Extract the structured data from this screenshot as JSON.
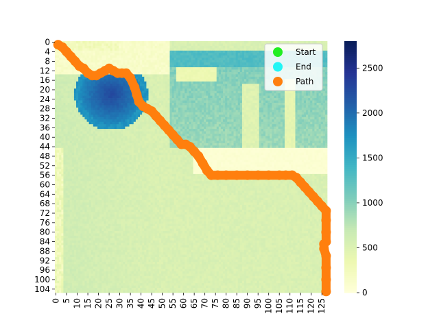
{
  "chart_data": {
    "type": "heatmap",
    "title": "",
    "xlabel": "",
    "ylabel": "",
    "x_tick_labels": [
      "0",
      "5",
      "10",
      "15",
      "20",
      "25",
      "30",
      "35",
      "40",
      "45",
      "50",
      "55",
      "60",
      "65",
      "70",
      "75",
      "80",
      "85",
      "90",
      "95",
      "100",
      "105",
      "110",
      "115",
      "120",
      "125"
    ],
    "y_tick_labels": [
      "0",
      "4",
      "8",
      "12",
      "16",
      "20",
      "24",
      "28",
      "32",
      "36",
      "40",
      "44",
      "48",
      "52",
      "56",
      "60",
      "64",
      "68",
      "72",
      "76",
      "80",
      "84",
      "88",
      "92",
      "96",
      "100",
      "104"
    ],
    "grid_cols": 128,
    "grid_rows": 106,
    "colorbar": {
      "min": 0,
      "max": 2800,
      "ticks": [
        0,
        500,
        1000,
        1500,
        2000,
        2500
      ],
      "colormap": "YlGnBu"
    },
    "legend": {
      "placement": "top-right",
      "entries": [
        {
          "label": "Start",
          "color": "#22ee22"
        },
        {
          "label": "End",
          "color": "#22f5f5"
        },
        {
          "label": "Path",
          "color": "#ff7f0e"
        }
      ]
    },
    "path": {
      "color": "#ff7f0e",
      "points": [
        [
          1,
          1
        ],
        [
          3,
          2
        ],
        [
          5,
          4
        ],
        [
          7,
          6
        ],
        [
          9,
          8
        ],
        [
          11,
          10
        ],
        [
          13,
          11
        ],
        [
          15,
          13
        ],
        [
          17,
          14
        ],
        [
          19,
          14
        ],
        [
          21,
          13
        ],
        [
          23,
          12
        ],
        [
          25,
          11
        ],
        [
          27,
          12
        ],
        [
          29,
          13
        ],
        [
          31,
          13
        ],
        [
          33,
          13
        ],
        [
          35,
          15
        ],
        [
          37,
          19
        ],
        [
          38,
          22
        ],
        [
          39,
          25
        ],
        [
          41,
          27
        ],
        [
          43,
          28
        ],
        [
          45,
          29
        ],
        [
          47,
          31
        ],
        [
          49,
          33
        ],
        [
          51,
          35
        ],
        [
          53,
          37
        ],
        [
          55,
          39
        ],
        [
          57,
          41
        ],
        [
          59,
          43
        ],
        [
          61,
          43
        ],
        [
          63,
          44
        ],
        [
          65,
          46
        ],
        [
          67,
          48
        ],
        [
          69,
          51
        ],
        [
          71,
          54
        ],
        [
          73,
          56
        ],
        [
          76,
          56
        ],
        [
          80,
          56
        ],
        [
          85,
          56
        ],
        [
          90,
          56
        ],
        [
          95,
          56
        ],
        [
          100,
          56
        ],
        [
          105,
          56
        ],
        [
          108,
          56
        ],
        [
          111,
          56
        ],
        [
          113,
          57
        ],
        [
          115,
          59
        ],
        [
          117,
          61
        ],
        [
          119,
          63
        ],
        [
          121,
          65
        ],
        [
          123,
          67
        ],
        [
          125,
          69
        ],
        [
          127,
          71
        ],
        [
          127,
          75
        ],
        [
          127,
          80
        ],
        [
          127,
          84
        ],
        [
          126,
          85
        ],
        [
          126,
          87
        ],
        [
          127,
          90
        ],
        [
          127,
          95
        ],
        [
          127,
          100
        ],
        [
          127,
          105
        ]
      ]
    }
  }
}
